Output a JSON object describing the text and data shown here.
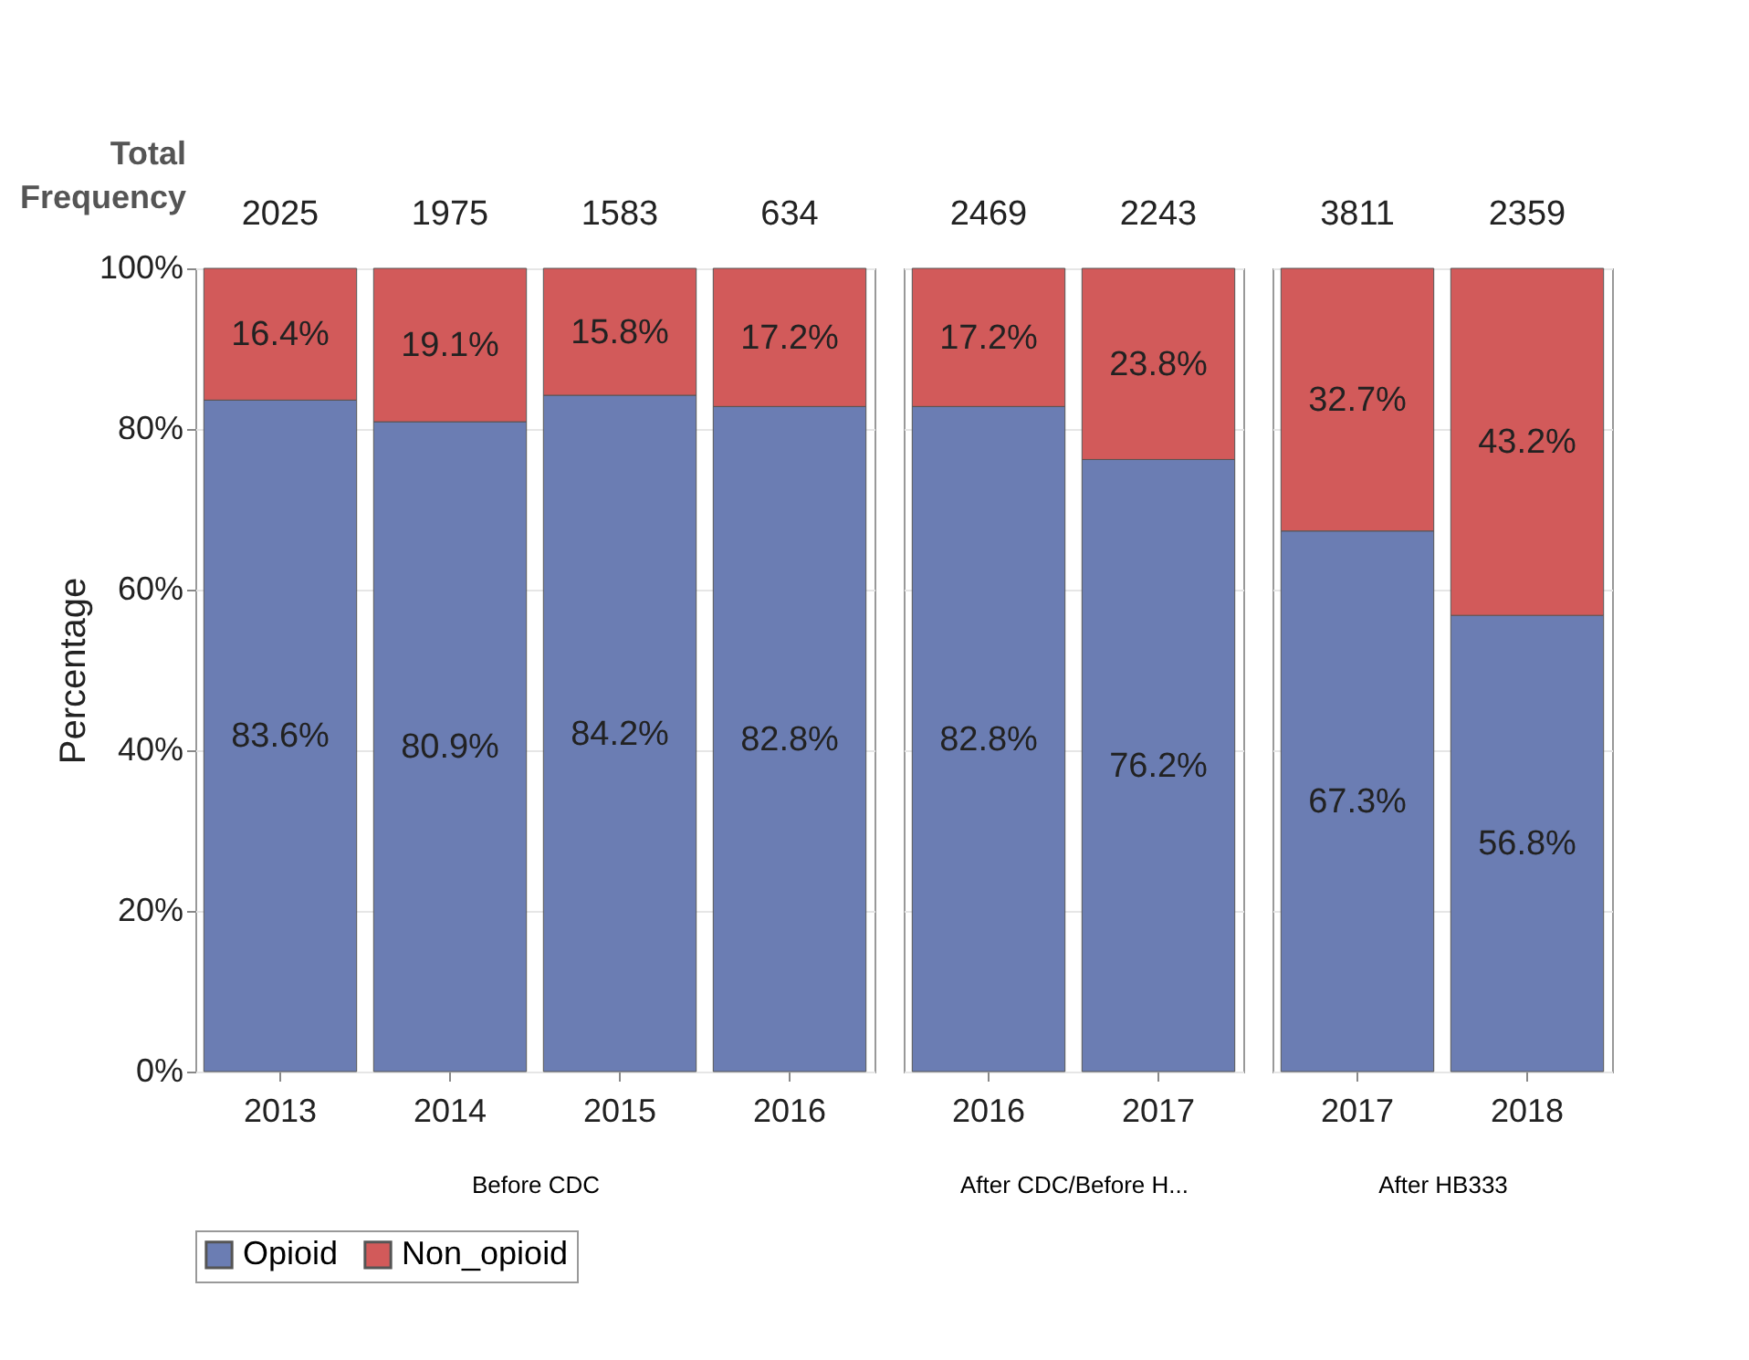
{
  "chart_data": [
    {
      "type": "bar",
      "stacked": true,
      "xlabel": "Before CDC",
      "ylabel": "Percentage",
      "categories": [
        "2013",
        "2014",
        "2015",
        "2016"
      ],
      "series": [
        {
          "name": "Opioid",
          "color": "#6b7db3",
          "values": [
            83.6,
            80.9,
            84.2,
            82.8
          ],
          "value_labels": [
            "83.6%",
            "80.9%",
            "84.2%",
            "82.8%"
          ]
        },
        {
          "name": "Non_opioid",
          "color": "#d25a5a",
          "values": [
            16.4,
            19.1,
            15.8,
            17.2
          ],
          "value_labels": [
            "16.4%",
            "19.1%",
            "15.8%",
            "17.2%"
          ]
        }
      ],
      "annotations": [
        "Total Frequency",
        "2025",
        "1975",
        "1583",
        "634"
      ],
      "ylim": [
        0,
        100
      ],
      "yticks": [
        {
          "value": 0,
          "label": "0%"
        },
        {
          "value": 20,
          "label": "20%"
        },
        {
          "value": 40,
          "label": "40%"
        },
        {
          "value": 60,
          "label": "60%"
        },
        {
          "value": 80,
          "label": "80%"
        },
        {
          "value": 100,
          "label": "100%"
        }
      ],
      "grid": "y",
      "legend": "bottom"
    },
    {
      "type": "bar",
      "stacked": true,
      "xlabel": "After CDC/Before H...",
      "categories": [
        "2016",
        "2017"
      ],
      "series": [
        {
          "color": "#6b7db3",
          "values": [
            82.8,
            76.2
          ],
          "value_labels": [
            "82.8%",
            "76.2%"
          ]
        },
        {
          "color": "#d25a5a",
          "values": [
            17.2,
            23.8
          ],
          "value_labels": [
            "17.2%",
            "23.8%"
          ]
        }
      ],
      "annotations": [
        "2469",
        "2243"
      ],
      "ylim": [
        0,
        100
      ],
      "yticks": [
        {
          "value": 0,
          "label": null
        },
        {
          "value": 20,
          "label": null
        },
        {
          "value": 40,
          "label": null
        },
        {
          "value": 60,
          "label": null
        },
        {
          "value": 80,
          "label": null
        },
        {
          "value": 100,
          "label": null
        }
      ],
      "grid": "y",
      "tick_labels": "x"
    },
    {
      "type": "bar",
      "stacked": true,
      "xlabel": "After HB333",
      "categories": [
        "2017",
        "2018"
      ],
      "series": [
        {
          "color": "#6b7db3",
          "values": [
            67.3,
            56.8
          ],
          "value_labels": [
            "67.3%",
            "56.8%"
          ]
        },
        {
          "color": "#d25a5a",
          "values": [
            32.7,
            43.2
          ],
          "value_labels": [
            "32.7%",
            "43.2%"
          ]
        }
      ],
      "annotations": [
        "3811",
        "2359"
      ],
      "ylim": [
        0,
        100
      ],
      "yticks": [
        {
          "value": 0,
          "label": null
        },
        {
          "value": 20,
          "label": null
        },
        {
          "value": 40,
          "label": null
        },
        {
          "value": 60,
          "label": null
        },
        {
          "value": 80,
          "label": null
        },
        {
          "value": 100,
          "label": null
        }
      ],
      "grid": "y",
      "tick_labels": "x"
    }
  ]
}
